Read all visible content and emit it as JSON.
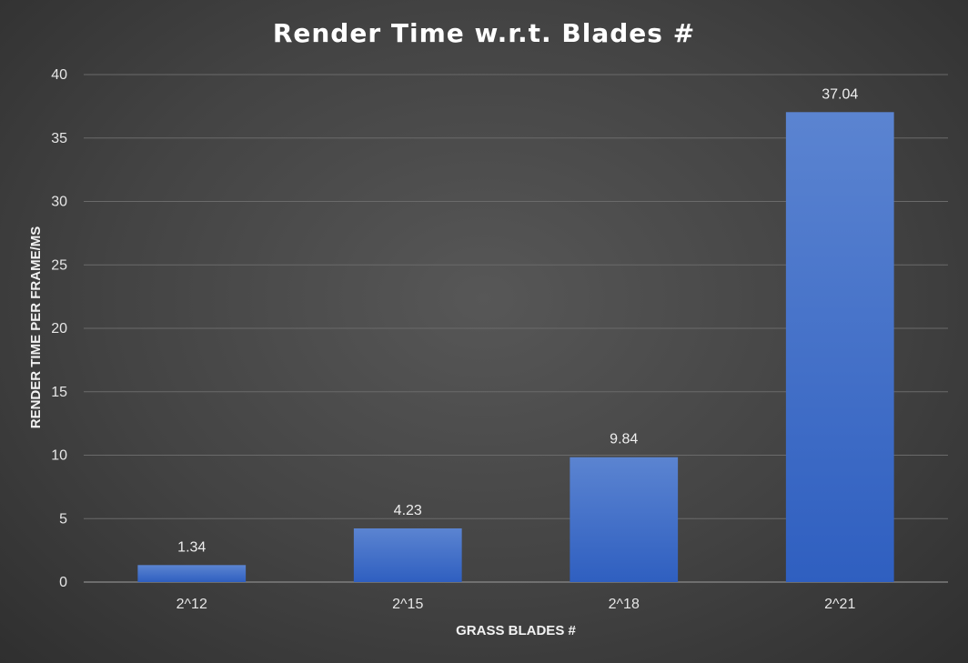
{
  "chart_data": {
    "type": "bar",
    "title": "Render Time w.r.t. Blades #",
    "xlabel": "GRASS BLADES #",
    "ylabel": "RENDER TIME PER FRAME/MS",
    "categories": [
      "2^12",
      "2^15",
      "2^18",
      "2^21"
    ],
    "values": [
      1.34,
      4.23,
      9.84,
      37.04
    ],
    "data_labels": [
      "1.34",
      "4.23",
      "9.84",
      "37.04"
    ],
    "ylim": [
      0,
      40
    ],
    "yticks": [
      0,
      5,
      10,
      15,
      20,
      25,
      30,
      35,
      40
    ],
    "grid": true,
    "legend": "none",
    "colors": {
      "bar_top": "#5b84d1",
      "bar_bottom": "#2f5fc0"
    }
  }
}
